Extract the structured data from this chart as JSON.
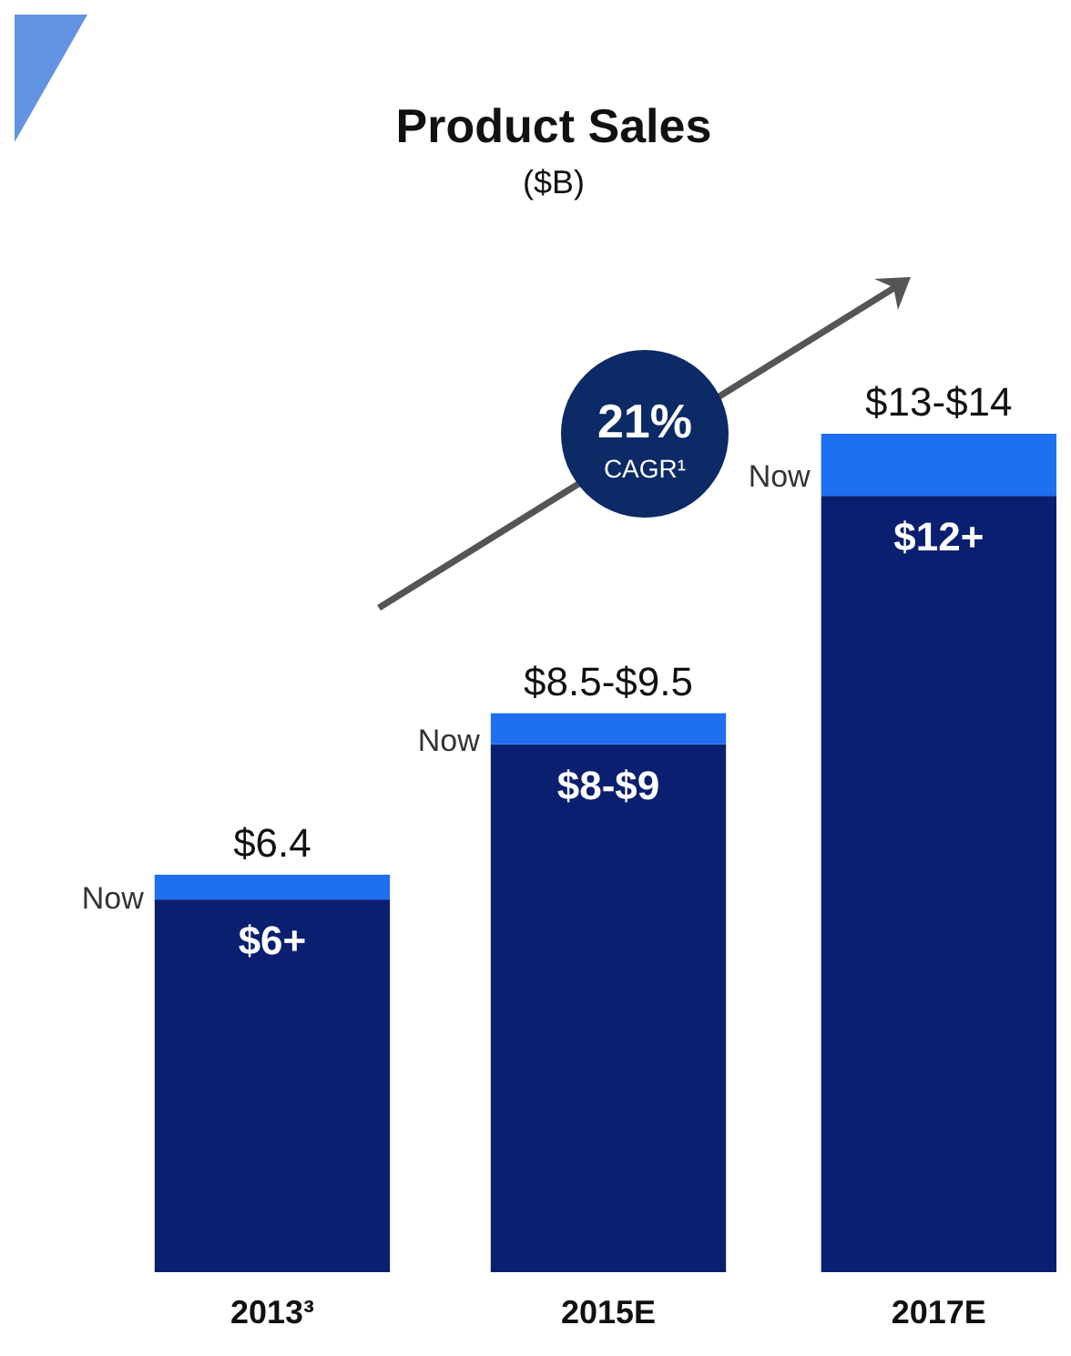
{
  "chart_data": {
    "type": "bar",
    "title": "Product Sales",
    "subtitle": "($B)",
    "categories": [
      "2013³",
      "2015E",
      "2017E"
    ],
    "stacked": true,
    "series": [
      {
        "color": "#0b1f70",
        "values": [
          6,
          8.5,
          12.5
        ],
        "value_labels": [
          "$6+",
          "$8-$9",
          "$12+"
        ]
      },
      {
        "name": "Now",
        "color": "#1f6ff2",
        "values": [
          0.4,
          0.5,
          1
        ]
      }
    ],
    "totals": [
      "$6.4",
      "$8.5-$9.5",
      "$13-$14"
    ],
    "annotations": [
      "21% CAGR¹"
    ]
  }
}
